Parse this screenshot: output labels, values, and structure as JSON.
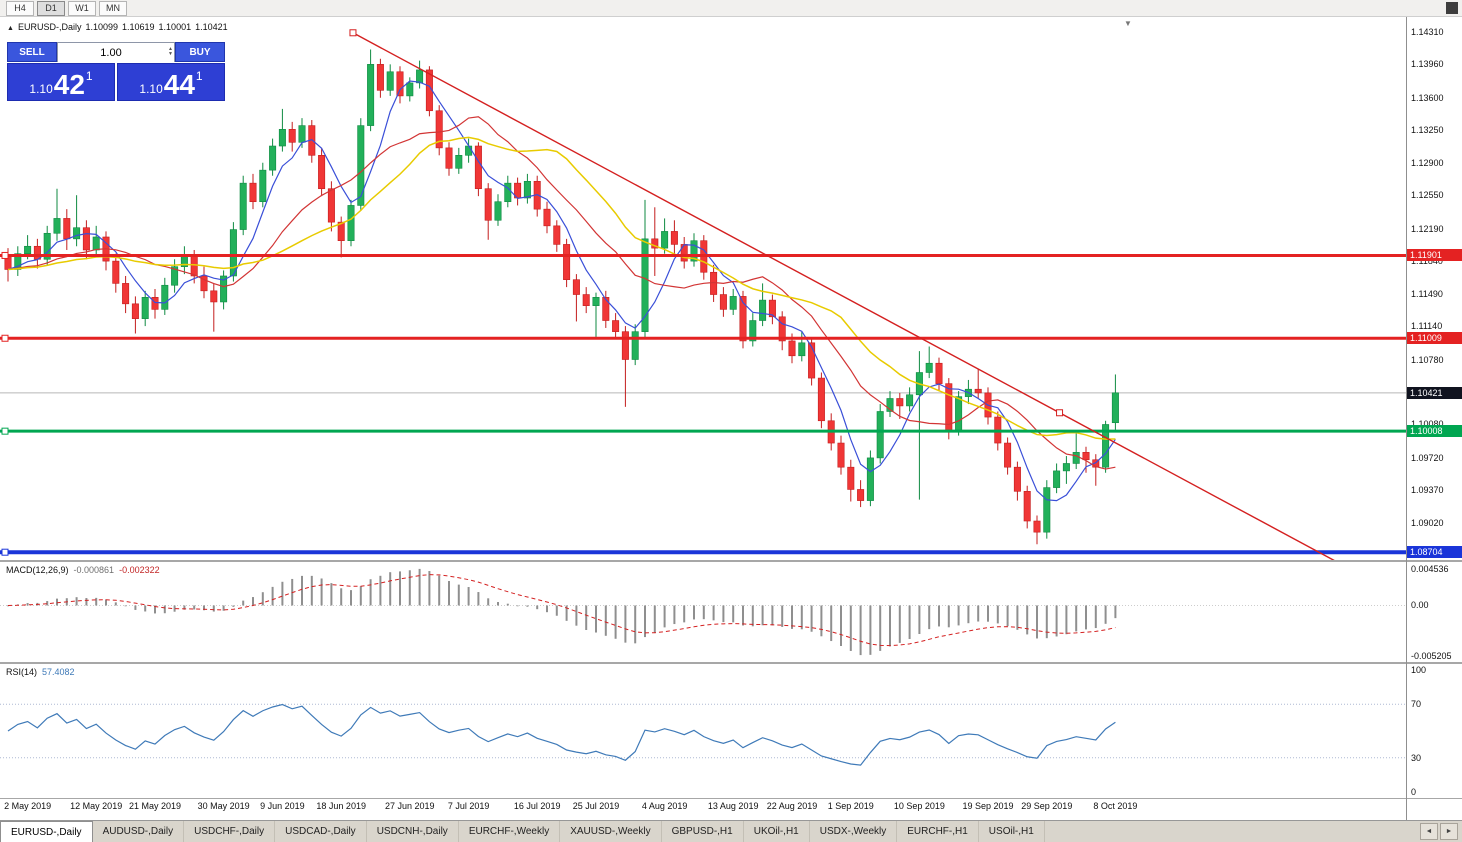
{
  "icons": {
    "chart_symbol": "▲",
    "spinner_up": "▲",
    "spinner_down": "▼",
    "tab_left": "◄",
    "tab_right": "►",
    "shift_marker": "▼"
  },
  "toolbar": {
    "timeframes": [
      {
        "label": "H4",
        "active": false
      },
      {
        "label": "D1",
        "active": true
      },
      {
        "label": "W1",
        "active": false
      },
      {
        "label": "MN",
        "active": false
      }
    ]
  },
  "header": {
    "symbol": "EURUSD-,Daily",
    "open": "1.10099",
    "high": "1.10619",
    "low": "1.10001",
    "close": "1.10421"
  },
  "trade_panel": {
    "sell_label": "SELL",
    "buy_label": "BUY",
    "volume": "1.00",
    "sell_price": {
      "prefix": "1.10",
      "big": "42",
      "sup": "1"
    },
    "buy_price": {
      "prefix": "1.10",
      "big": "44",
      "sup": "1"
    }
  },
  "colors": {
    "bull_fill": "#22b05a",
    "bull_stroke": "#0f8a42",
    "bear_fill": "#f03636",
    "bear_stroke": "#c31d1d"
  },
  "chart_data": {
    "type": "candlestick",
    "symbol": "EURUSD",
    "timeframe": "Daily",
    "price_axis": {
      "min": 1.0862,
      "max": 1.1447,
      "ticks": [
        "1.14310",
        "1.13960",
        "1.13600",
        "1.13250",
        "1.12900",
        "1.12550",
        "1.12190",
        "1.11840",
        "1.11490",
        "1.11140",
        "1.10780",
        "1.10080",
        "1.09720",
        "1.09370",
        "1.09020"
      ]
    },
    "candles": [
      [
        1.119,
        1.1198,
        1.1162,
        1.1175
      ],
      [
        1.1175,
        1.12,
        1.1168,
        1.1192
      ],
      [
        1.1192,
        1.1212,
        1.1186,
        1.12
      ],
      [
        1.12,
        1.1208,
        1.1176,
        1.1186
      ],
      [
        1.1186,
        1.1222,
        1.118,
        1.1214
      ],
      [
        1.1214,
        1.1262,
        1.1206,
        1.123
      ],
      [
        1.123,
        1.124,
        1.1196,
        1.1208
      ],
      [
        1.1208,
        1.1255,
        1.12,
        1.122
      ],
      [
        1.122,
        1.1228,
        1.1186,
        1.1196
      ],
      [
        1.1196,
        1.1222,
        1.119,
        1.121
      ],
      [
        1.121,
        1.1216,
        1.1174,
        1.1184
      ],
      [
        1.1184,
        1.1192,
        1.115,
        1.116
      ],
      [
        1.116,
        1.1168,
        1.1128,
        1.1138
      ],
      [
        1.1138,
        1.1146,
        1.1106,
        1.1122
      ],
      [
        1.1122,
        1.1152,
        1.1114,
        1.1145
      ],
      [
        1.1145,
        1.1154,
        1.1122,
        1.1132
      ],
      [
        1.1132,
        1.1166,
        1.1126,
        1.1158
      ],
      [
        1.1158,
        1.1186,
        1.115,
        1.1178
      ],
      [
        1.1178,
        1.12,
        1.117,
        1.119
      ],
      [
        1.119,
        1.1196,
        1.116,
        1.1168
      ],
      [
        1.1168,
        1.1178,
        1.1144,
        1.1152
      ],
      [
        1.1152,
        1.116,
        1.1108,
        1.114
      ],
      [
        1.114,
        1.1174,
        1.1132,
        1.1168
      ],
      [
        1.1168,
        1.1226,
        1.1162,
        1.1218
      ],
      [
        1.1218,
        1.1276,
        1.1212,
        1.1268
      ],
      [
        1.1268,
        1.1278,
        1.124,
        1.1248
      ],
      [
        1.1248,
        1.129,
        1.1242,
        1.1282
      ],
      [
        1.1282,
        1.1316,
        1.1276,
        1.1308
      ],
      [
        1.1308,
        1.1348,
        1.1302,
        1.1326
      ],
      [
        1.1326,
        1.1334,
        1.1302,
        1.1312
      ],
      [
        1.1312,
        1.1338,
        1.1306,
        1.133
      ],
      [
        1.133,
        1.1336,
        1.129,
        1.1298
      ],
      [
        1.1298,
        1.1306,
        1.1254,
        1.1262
      ],
      [
        1.1262,
        1.127,
        1.1216,
        1.1226
      ],
      [
        1.1226,
        1.1232,
        1.1188,
        1.1206
      ],
      [
        1.1206,
        1.125,
        1.12,
        1.1244
      ],
      [
        1.1244,
        1.1338,
        1.1238,
        1.133
      ],
      [
        1.133,
        1.1412,
        1.1324,
        1.1396
      ],
      [
        1.1396,
        1.1402,
        1.136,
        1.1368
      ],
      [
        1.1368,
        1.1396,
        1.1362,
        1.1388
      ],
      [
        1.1388,
        1.1394,
        1.1354,
        1.1362
      ],
      [
        1.1362,
        1.1382,
        1.1356,
        1.1376
      ],
      [
        1.1376,
        1.14,
        1.137,
        1.139
      ],
      [
        1.139,
        1.1394,
        1.134,
        1.1346
      ],
      [
        1.1346,
        1.1352,
        1.1298,
        1.1306
      ],
      [
        1.1306,
        1.1312,
        1.1276,
        1.1284
      ],
      [
        1.1284,
        1.1306,
        1.1278,
        1.1298
      ],
      [
        1.1298,
        1.1316,
        1.129,
        1.1308
      ],
      [
        1.1308,
        1.1312,
        1.1254,
        1.1262
      ],
      [
        1.1262,
        1.1268,
        1.1207,
        1.1228
      ],
      [
        1.1228,
        1.1256,
        1.1222,
        1.1248
      ],
      [
        1.1248,
        1.1276,
        1.1242,
        1.1268
      ],
      [
        1.1268,
        1.1274,
        1.1244,
        1.1252
      ],
      [
        1.1252,
        1.1278,
        1.1246,
        1.127
      ],
      [
        1.127,
        1.1276,
        1.1232,
        1.124
      ],
      [
        1.124,
        1.1248,
        1.1214,
        1.1222
      ],
      [
        1.1222,
        1.1228,
        1.1194,
        1.1202
      ],
      [
        1.1202,
        1.1208,
        1.1156,
        1.1164
      ],
      [
        1.1164,
        1.117,
        1.1119,
        1.1148
      ],
      [
        1.1148,
        1.1156,
        1.1128,
        1.1136
      ],
      [
        1.1136,
        1.115,
        1.1101,
        1.1145
      ],
      [
        1.1145,
        1.1152,
        1.1112,
        1.112
      ],
      [
        1.112,
        1.1128,
        1.11,
        1.1108
      ],
      [
        1.1108,
        1.1114,
        1.1027,
        1.1078
      ],
      [
        1.1078,
        1.1116,
        1.1072,
        1.1108
      ],
      [
        1.1108,
        1.125,
        1.1102,
        1.1208
      ],
      [
        1.1208,
        1.1242,
        1.1168,
        1.1198
      ],
      [
        1.1198,
        1.123,
        1.1192,
        1.1216
      ],
      [
        1.1216,
        1.1228,
        1.119,
        1.1202
      ],
      [
        1.1202,
        1.121,
        1.1176,
        1.1184
      ],
      [
        1.1184,
        1.1214,
        1.1178,
        1.1206
      ],
      [
        1.1206,
        1.1212,
        1.1164,
        1.1172
      ],
      [
        1.1172,
        1.118,
        1.114,
        1.1148
      ],
      [
        1.1148,
        1.1156,
        1.1124,
        1.1132
      ],
      [
        1.1132,
        1.1154,
        1.1126,
        1.1146
      ],
      [
        1.1146,
        1.1152,
        1.109,
        1.1098
      ],
      [
        1.1098,
        1.1128,
        1.1092,
        1.112
      ],
      [
        1.112,
        1.116,
        1.1114,
        1.1142
      ],
      [
        1.1142,
        1.1148,
        1.1116,
        1.1124
      ],
      [
        1.1124,
        1.113,
        1.1088,
        1.1098
      ],
      [
        1.1098,
        1.1106,
        1.1074,
        1.1082
      ],
      [
        1.1082,
        1.1108,
        1.1076,
        1.1096
      ],
      [
        1.1096,
        1.1102,
        1.105,
        1.1058
      ],
      [
        1.1058,
        1.1064,
        1.1004,
        1.1012
      ],
      [
        1.1012,
        1.102,
        1.098,
        1.0988
      ],
      [
        1.0988,
        1.0996,
        1.0954,
        1.0962
      ],
      [
        1.0962,
        1.097,
        1.0925,
        1.0938
      ],
      [
        1.0938,
        1.0948,
        1.0919,
        1.0926
      ],
      [
        1.0926,
        1.098,
        1.092,
        1.0972
      ],
      [
        1.0972,
        1.103,
        1.0966,
        1.1022
      ],
      [
        1.1022,
        1.1044,
        1.1016,
        1.1036
      ],
      [
        1.1036,
        1.1042,
        1.1014,
        1.1028
      ],
      [
        1.1028,
        1.1048,
        1.1022,
        1.104
      ],
      [
        1.104,
        1.1087,
        1.0927,
        1.1064
      ],
      [
        1.1064,
        1.1092,
        1.1058,
        1.1074
      ],
      [
        1.1074,
        1.108,
        1.1044,
        1.1052
      ],
      [
        1.1052,
        1.1058,
        1.0992,
        1.1002
      ],
      [
        1.1002,
        1.1044,
        1.0996,
        1.1038
      ],
      [
        1.1038,
        1.1056,
        1.103,
        1.1046
      ],
      [
        1.1046,
        1.1068,
        1.1036,
        1.1042
      ],
      [
        1.1042,
        1.1048,
        1.1008,
        1.1016
      ],
      [
        1.1016,
        1.1022,
        1.098,
        1.0988
      ],
      [
        1.0988,
        1.0994,
        1.0954,
        1.0962
      ],
      [
        1.0962,
        1.0968,
        1.0926,
        1.0936
      ],
      [
        1.0936,
        1.0942,
        1.0896,
        1.0904
      ],
      [
        1.0904,
        1.091,
        1.0879,
        1.0892
      ],
      [
        1.0892,
        1.0948,
        1.0885,
        1.094
      ],
      [
        1.094,
        1.0966,
        1.0934,
        1.0958
      ],
      [
        1.0958,
        1.0974,
        1.0944,
        1.0966
      ],
      [
        1.0966,
        1.0999,
        1.096,
        1.0978
      ],
      [
        1.0978,
        1.0984,
        1.0956,
        1.097
      ],
      [
        1.097,
        1.0976,
        1.0942,
        1.0962
      ],
      [
        1.0962,
        1.1012,
        1.0956,
        1.1008
      ],
      [
        1.10099,
        1.10619,
        1.10001,
        1.10421
      ]
    ],
    "x_labels": [
      {
        "i": 2,
        "t": "2 May 2019"
      },
      {
        "i": 9,
        "t": "12 May 2019"
      },
      {
        "i": 15,
        "t": "21 May 2019"
      },
      {
        "i": 22,
        "t": "30 May 2019"
      },
      {
        "i": 28,
        "t": "9 Jun 2019"
      },
      {
        "i": 34,
        "t": "18 Jun 2019"
      },
      {
        "i": 41,
        "t": "27 Jun 2019"
      },
      {
        "i": 47,
        "t": "7 Jul 2019"
      },
      {
        "i": 54,
        "t": "16 Jul 2019"
      },
      {
        "i": 60,
        "t": "25 Jul 2019"
      },
      {
        "i": 67,
        "t": "4 Aug 2019"
      },
      {
        "i": 74,
        "t": "13 Aug 2019"
      },
      {
        "i": 80,
        "t": "22 Aug 2019"
      },
      {
        "i": 86,
        "t": "1 Sep 2019"
      },
      {
        "i": 93,
        "t": "10 Sep 2019"
      },
      {
        "i": 100,
        "t": "19 Sep 2019"
      },
      {
        "i": 106,
        "t": "29 Sep 2019"
      },
      {
        "i": 113,
        "t": "8 Oct 2019"
      }
    ],
    "moving_averages": [
      {
        "name": "fast",
        "period": 5,
        "color": "#3a4fd8",
        "width": 1.2
      },
      {
        "name": "mid",
        "period": 13,
        "color": "#d23535",
        "width": 1.2
      },
      {
        "name": "slow",
        "period": 21,
        "color": "#e8cb00",
        "width": 1.5
      }
    ],
    "hlines": [
      {
        "value": 1.11901,
        "label": "1.11901",
        "color": "#e42222",
        "width": 3
      },
      {
        "value": 1.11009,
        "label": "1.11009",
        "color": "#e42222",
        "width": 3
      },
      {
        "value": 1.10008,
        "label": "1.10008",
        "color": "#00a651",
        "width": 3
      },
      {
        "value": 1.08704,
        "label": "1.08704",
        "color": "#1a35d9",
        "width": 4
      }
    ],
    "current_price": {
      "value": 1.10421,
      "label": "1.10421",
      "badge_color": "#10131f",
      "line_color": "#b6b6b6"
    },
    "trendline": {
      "color": "#d42020",
      "start_index": 35.2,
      "start_price": 1.143,
      "end_index": 137,
      "end_price": 1.0852,
      "handle_indices": [
        35.2,
        107.3
      ]
    },
    "macd": {
      "label": "MACD(12,26,9)",
      "value_main": "-0.000861",
      "value_signal": "-0.002322",
      "fast": 12,
      "slow": 26,
      "signal": 9,
      "axis_top": "0.004536",
      "axis_zero": "0.00",
      "axis_bottom": "-0.005205",
      "hist_color": "#8f8f8f",
      "signal_color": "#d42020"
    },
    "rsi": {
      "label": "RSI(14)",
      "value": "57.4082",
      "period": 14,
      "color": "#3f7ab8",
      "levels": [
        70,
        30
      ],
      "axis": [
        "100",
        "70",
        "30",
        "0"
      ]
    }
  },
  "tabs": [
    {
      "label": "EURUSD-,Daily",
      "active": true
    },
    {
      "label": "AUDUSD-,Daily",
      "active": false
    },
    {
      "label": "USDCHF-,Daily",
      "active": false
    },
    {
      "label": "USDCAD-,Daily",
      "active": false
    },
    {
      "label": "USDCNH-,Daily",
      "active": false
    },
    {
      "label": "EURCHF-,Weekly",
      "active": false
    },
    {
      "label": "XAUUSD-,Weekly",
      "active": false
    },
    {
      "label": "GBPUSD-,H1",
      "active": false
    },
    {
      "label": "UKOil-,H1",
      "active": false
    },
    {
      "label": "USDX-,Weekly",
      "active": false
    },
    {
      "label": "EURCHF-,H1",
      "active": false
    },
    {
      "label": "USOil-,H1",
      "active": false
    }
  ]
}
